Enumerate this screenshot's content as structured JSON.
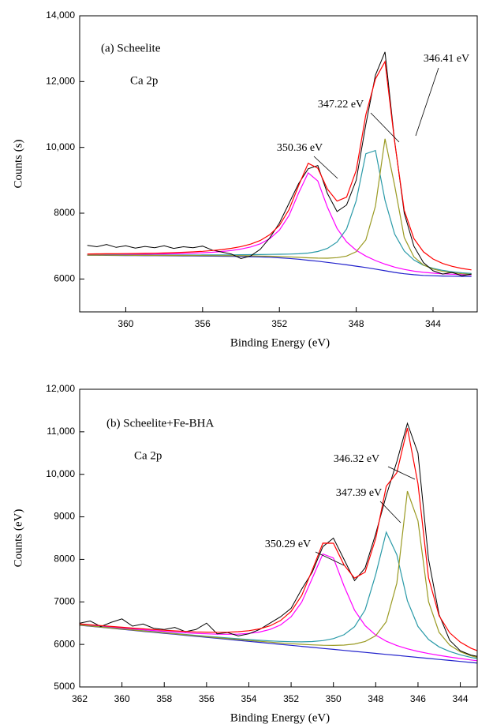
{
  "chart_data": [
    {
      "type": "line",
      "title": "(a) Scheelite",
      "subtitle": "Ca 2p",
      "xlabel": "Binding Energy (eV)",
      "ylabel": "Counts (s)",
      "xlim": [
        362.4,
        341.7
      ],
      "ylim": [
        5000,
        14000
      ],
      "xticks": [
        360,
        356,
        352,
        348,
        344
      ],
      "yticks": [
        6000,
        8000,
        {
          "value": 10000,
          "label": "10,000"
        },
        {
          "value": 12000,
          "label": "12,000"
        },
        {
          "value": 14000,
          "label": "14,000"
        }
      ],
      "annotations": [
        "346.41 eV",
        "347.22 eV",
        "350.36 eV"
      ],
      "x": [
        362,
        361.5,
        361,
        360.5,
        360,
        359.5,
        359,
        358.5,
        358,
        357.5,
        357,
        356.5,
        356,
        355.5,
        355,
        354.5,
        354,
        353.5,
        353,
        352.5,
        352,
        351.5,
        351,
        350.5,
        350,
        349.5,
        349,
        348.5,
        348,
        347.5,
        347,
        346.5,
        346,
        345.5,
        345,
        344.5,
        344,
        343.5,
        343,
        342.5,
        342
      ],
      "series": [
        {
          "color": "#2222cc",
          "values": [
            6720,
            6720,
            6718,
            6716,
            6714,
            6712,
            6710,
            6708,
            6706,
            6704,
            6702,
            6700,
            6698,
            6695,
            6692,
            6688,
            6684,
            6678,
            6670,
            6660,
            6645,
            6625,
            6600,
            6570,
            6540,
            6505,
            6470,
            6430,
            6390,
            6350,
            6300,
            6250,
            6200,
            6160,
            6130,
            6110,
            6100,
            6090,
            6085,
            6080,
            6078
          ]
        },
        {
          "color": "#ff00ff",
          "values": [
            6744,
            6746,
            6746,
            6747,
            6749,
            6751,
            6753,
            6756,
            6761,
            6767,
            6774,
            6784,
            6797,
            6813,
            6836,
            6866,
            6910,
            6973,
            7069,
            7225,
            7483,
            7929,
            8615,
            9227,
            8979,
            8182,
            7537,
            7130,
            6872,
            6698,
            6561,
            6453,
            6362,
            6292,
            6239,
            6202,
            6178,
            6158,
            6144,
            6132,
            6124
          ]
        },
        {
          "color": "#2a9aa8",
          "values": [
            6731,
            6732,
            6731,
            6730,
            6729,
            6728,
            6728,
            6727,
            6727,
            6727,
            6728,
            6729,
            6730,
            6731,
            6733,
            6734,
            6737,
            6740,
            6743,
            6747,
            6751,
            6756,
            6766,
            6788,
            6836,
            6930,
            7122,
            7520,
            8380,
            9807,
            9906,
            8394,
            7366,
            6850,
            6576,
            6419,
            6326,
            6262,
            6220,
            6188,
            6167
          ]
        },
        {
          "color": "#9a9a22",
          "values": [
            6725,
            6725,
            6724,
            6722,
            6721,
            6719,
            6718,
            6716,
            6715,
            6714,
            6713,
            6712,
            6711,
            6710,
            6709,
            6707,
            6706,
            6703,
            6698,
            6693,
            6684,
            6673,
            6658,
            6643,
            6634,
            6631,
            6648,
            6697,
            6830,
            7186,
            8216,
            10262,
            8848,
            7262,
            6674,
            6425,
            6304,
            6232,
            6190,
            6160,
            6141
          ]
        },
        {
          "color": "#000000",
          "values": [
            7020,
            6980,
            7050,
            6960,
            7010,
            6940,
            6990,
            6950,
            7010,
            6930,
            6980,
            6950,
            7000,
            6880,
            6820,
            6760,
            6620,
            6700,
            6900,
            7250,
            7700,
            8300,
            8900,
            9350,
            9450,
            8600,
            8050,
            8250,
            9000,
            10700,
            12200,
            12900,
            10200,
            8000,
            7000,
            6500,
            6250,
            6150,
            6200,
            6100,
            6150
          ]
        },
        {
          "color": "#ff0000",
          "values": [
            6760,
            6763,
            6766,
            6767,
            6771,
            6774,
            6779,
            6783,
            6791,
            6800,
            6811,
            6825,
            6842,
            6864,
            6894,
            6931,
            6985,
            7060,
            7170,
            7345,
            7628,
            8108,
            8839,
            9518,
            9369,
            8733,
            8367,
            8487,
            9302,
            10991,
            12083,
            12609,
            10176,
            8084,
            7229,
            6826,
            6608,
            6472,
            6384,
            6320,
            6276
          ]
        }
      ]
    },
    {
      "type": "line",
      "title": "(b) Scheelite+Fe-BHA",
      "subtitle": "Ca 2p",
      "xlabel": "Binding Energy (eV)",
      "ylabel": "Counts (eV)",
      "xlim": [
        362,
        343.2
      ],
      "ylim": [
        5000,
        12000
      ],
      "xticks": [
        362,
        360,
        358,
        356,
        354,
        352,
        350,
        348,
        346,
        344
      ],
      "yticks": [
        5000,
        6000,
        7000,
        8000,
        9000,
        {
          "value": 10000,
          "label": "10,000"
        },
        {
          "value": 11000,
          "label": "11,000"
        },
        {
          "value": 12000,
          "label": "12,000"
        }
      ],
      "annotations": [
        "346.32 eV",
        "347.39 eV",
        "350.29 eV"
      ],
      "x": [
        362,
        361.5,
        361,
        360.5,
        360,
        359.5,
        359,
        358.5,
        358,
        357.5,
        357,
        356.5,
        356,
        355.5,
        355,
        354.5,
        354,
        353.5,
        353,
        352.5,
        352,
        351.5,
        351,
        350.5,
        350,
        349.5,
        349,
        348.5,
        348,
        347.5,
        347,
        346.5,
        346,
        345.5,
        345,
        344.5,
        344,
        343.5,
        343
      ],
      "series": [
        {
          "color": "#2222cc",
          "values": [
            6450,
            6426,
            6403,
            6379,
            6356,
            6332,
            6308,
            6285,
            6261,
            6238,
            6214,
            6190,
            6167,
            6143,
            6119,
            6096,
            6072,
            6049,
            6025,
            6001,
            5978,
            5954,
            5931,
            5907,
            5883,
            5860,
            5836,
            5813,
            5789,
            5765,
            5742,
            5718,
            5694,
            5671,
            5647,
            5624,
            5600,
            5576,
            5553
          ]
        },
        {
          "color": "#ff00ff",
          "values": [
            6470,
            6448,
            6427,
            6405,
            6385,
            6364,
            6344,
            6326,
            6307,
            6290,
            6274,
            6260,
            6249,
            6241,
            6238,
            6243,
            6258,
            6291,
            6351,
            6457,
            6651,
            6995,
            7555,
            8127,
            8033,
            7377,
            6804,
            6443,
            6220,
            6075,
            5973,
            5897,
            5836,
            5786,
            5742,
            5704,
            5668,
            5635,
            5604
          ]
        },
        {
          "color": "#2a9aa8",
          "values": [
            6459,
            6435,
            6413,
            6390,
            6368,
            6345,
            6322,
            6300,
            6278,
            6256,
            6234,
            6212,
            6192,
            6171,
            6151,
            6133,
            6114,
            6098,
            6083,
            6071,
            6064,
            6061,
            6068,
            6089,
            6136,
            6228,
            6416,
            6813,
            7643,
            8640,
            8109,
            7026,
            6423,
            6116,
            5942,
            5833,
            5755,
            5695,
            5647
          ]
        },
        {
          "color": "#9a9a22",
          "values": [
            6455,
            6432,
            6409,
            6385,
            6363,
            6339,
            6316,
            6294,
            6271,
            6248,
            6225,
            6203,
            6181,
            6158,
            6136,
            6115,
            6094,
            6074,
            6054,
            6035,
            6018,
            6002,
            5990,
            5980,
            5977,
            5985,
            6010,
            6070,
            6205,
            6533,
            7442,
            9602,
            8907,
            7006,
            6283,
            5984,
            5829,
            5734,
            5668
          ]
        },
        {
          "color": "#000000",
          "values": [
            6500,
            6550,
            6420,
            6520,
            6600,
            6430,
            6480,
            6380,
            6350,
            6400,
            6300,
            6350,
            6500,
            6250,
            6280,
            6200,
            6250,
            6350,
            6500,
            6650,
            6850,
            7300,
            7700,
            8300,
            8500,
            8000,
            7500,
            7800,
            8600,
            9500,
            10300,
            11200,
            10500,
            8000,
            6700,
            6100,
            5850,
            5750,
            5700
          ]
        },
        {
          "color": "#ff0000",
          "values": [
            6484,
            6463,
            6443,
            6422,
            6404,
            6384,
            6366,
            6350,
            6334,
            6318,
            6305,
            6295,
            6288,
            6284,
            6287,
            6299,
            6322,
            6365,
            6438,
            6561,
            6777,
            7150,
            7751,
            8382,
            8380,
            7870,
            7558,
            7700,
            8490,
            9718,
            10040,
            11089,
            9778,
            7566,
            6673,
            6273,
            6052,
            5912,
            5813
          ]
        }
      ]
    }
  ]
}
